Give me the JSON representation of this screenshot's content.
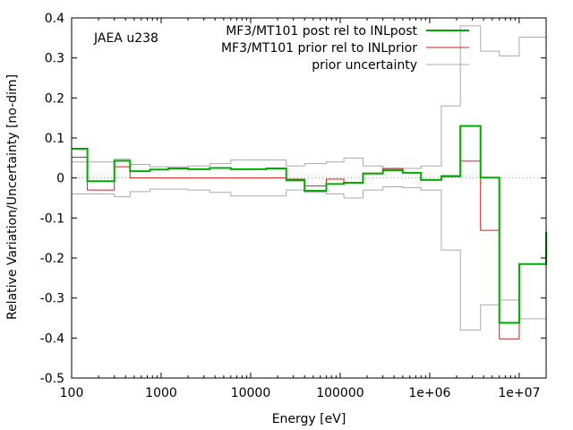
{
  "chart_data": {
    "type": "line",
    "annotation": "JAEA u238",
    "xlabel": "Energy [eV]",
    "ylabel": "Relative Variation/Uncertainty [no-dim]",
    "xscale": "log",
    "xlim": [
      100,
      20000000
    ],
    "ylim": [
      -0.5,
      0.4
    ],
    "xticks": [
      {
        "value": 100,
        "label": "100"
      },
      {
        "value": 1000,
        "label": "1000"
      },
      {
        "value": 10000,
        "label": "10000"
      },
      {
        "value": 100000,
        "label": "100000"
      },
      {
        "value": 1000000,
        "label": "1e+06"
      },
      {
        "value": 10000000,
        "label": "1e+07"
      }
    ],
    "yticks": [
      {
        "value": 0.4,
        "label": "0.4"
      },
      {
        "value": 0.3,
        "label": "0.3"
      },
      {
        "value": 0.2,
        "label": "0.2"
      },
      {
        "value": 0.1,
        "label": "0.1"
      },
      {
        "value": 0,
        "label": "0"
      },
      {
        "value": -0.1,
        "label": "-0.1"
      },
      {
        "value": -0.2,
        "label": "-0.2"
      },
      {
        "value": -0.3,
        "label": "-0.3"
      },
      {
        "value": -0.4,
        "label": "-0.4"
      },
      {
        "value": -0.5,
        "label": "-0.5"
      }
    ],
    "zero_line": true,
    "legend_position": "top-right",
    "series": [
      {
        "name": "MF3/MT101 post rel to INLpost",
        "color": "#00aa00",
        "width": 2,
        "step": true,
        "edges": [
          100,
          150,
          300,
          450,
          750,
          1200,
          2000,
          3500,
          6000,
          15000,
          25000,
          40000,
          70000,
          110000,
          180000,
          300000,
          500000,
          800000,
          1350000,
          2200000,
          3700000,
          6000000,
          10000000,
          20000000
        ],
        "values": [
          0.073,
          -0.008,
          0.043,
          0.017,
          0.021,
          0.024,
          0.022,
          0.025,
          0.022,
          0.024,
          -0.006,
          -0.032,
          -0.015,
          -0.012,
          0.011,
          0.019,
          0.013,
          -0.005,
          0.004,
          0.13,
          0.001,
          -0.362,
          -0.215,
          -0.135
        ]
      },
      {
        "name": "MF3/MT101 prior rel to INLprior",
        "color": "#cc2222",
        "width": 1,
        "step": true,
        "edges": [
          100,
          150,
          300,
          450,
          750,
          1200,
          2000,
          3500,
          6000,
          15000,
          25000,
          40000,
          70000,
          110000,
          180000,
          300000,
          500000,
          800000,
          1350000,
          2200000,
          3700000,
          6000000,
          10000000,
          20000000
        ],
        "values": [
          0.052,
          -0.03,
          0.028,
          0.0,
          0.0,
          0.0,
          0.0,
          0.0,
          0.0,
          0.0,
          -0.003,
          -0.02,
          -0.003,
          -0.013,
          0.012,
          0.024,
          0.013,
          -0.004,
          0.006,
          0.042,
          -0.131,
          -0.402,
          -0.215,
          -0.133
        ]
      },
      {
        "name": "prior uncertainty",
        "color": "#aaaaaa",
        "width": 1,
        "step": true,
        "edges": [
          100,
          150,
          300,
          450,
          750,
          1200,
          2000,
          3500,
          6000,
          15000,
          25000,
          40000,
          70000,
          110000,
          180000,
          300000,
          500000,
          800000,
          1350000,
          2200000,
          3700000,
          6000000,
          10000000,
          20000000
        ],
        "values": [
          0.04,
          0.04,
          0.047,
          0.034,
          0.028,
          0.028,
          0.03,
          0.036,
          0.045,
          0.045,
          0.03,
          0.036,
          0.04,
          0.05,
          0.03,
          0.022,
          0.024,
          0.03,
          0.18,
          0.38,
          0.317,
          0.305,
          0.352,
          0.352
        ],
        "mirrored": true
      }
    ]
  }
}
